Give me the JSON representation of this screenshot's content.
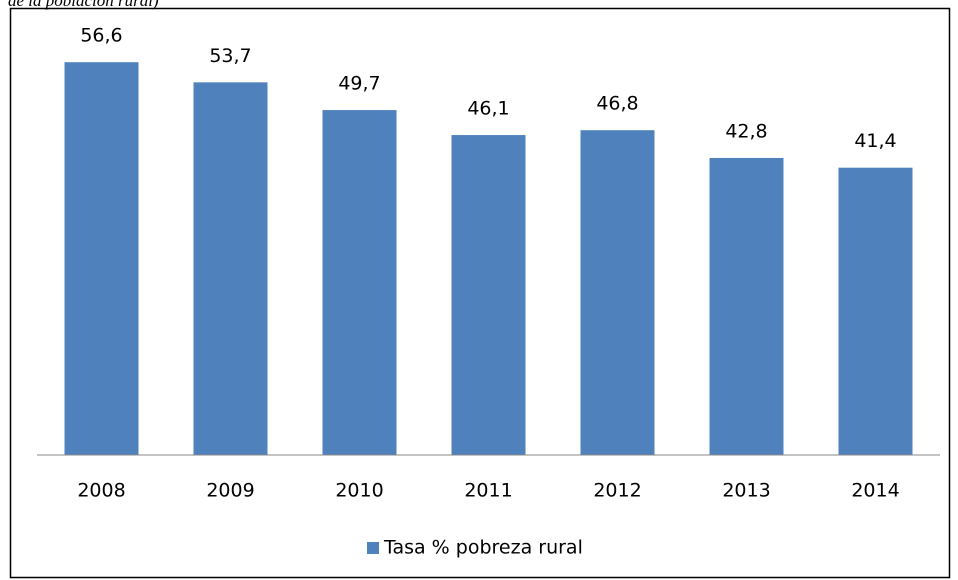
{
  "chart_data": {
    "type": "bar",
    "title": "de la población rural)",
    "categories": [
      "2008",
      "2009",
      "2010",
      "2011",
      "2012",
      "2013",
      "2014"
    ],
    "series": [
      {
        "name": "Tasa % pobreza rural",
        "color": "#4f81bd",
        "values": [
          56.6,
          53.7,
          49.7,
          46.1,
          46.8,
          42.8,
          41.4
        ],
        "value_labels": [
          "56,6",
          "53,7",
          "49,7",
          "46,1",
          "46,8",
          "42,8",
          "41,4"
        ]
      }
    ],
    "legend": "bottom"
  }
}
